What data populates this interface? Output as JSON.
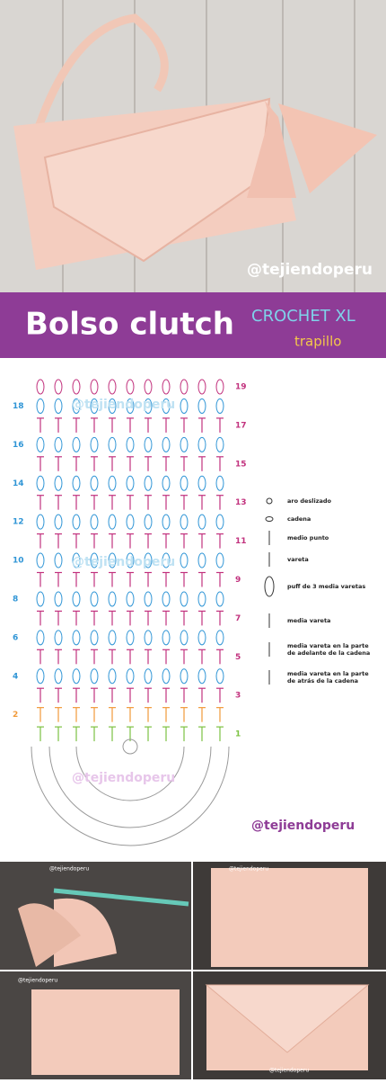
{
  "header_photo": {
    "watermark": "@tejiendoperu"
  },
  "banner": {
    "title": "Bolso clutch",
    "subtitle": "CROCHET XL",
    "tag": "trapillo"
  },
  "diagram": {
    "row_labels": [
      "19",
      "18",
      "17",
      "16",
      "15",
      "14",
      "13",
      "12",
      "11",
      "10",
      "9",
      "8",
      "7",
      "6",
      "5",
      "4",
      "3",
      "2",
      "1"
    ],
    "faint_watermarks": [
      "@tejiendoperu",
      "@tejiendoperu",
      "@tejiendoperu"
    ],
    "legend": [
      [
        "aro deslizado"
      ],
      [
        "cadena"
      ],
      [
        "medio punto"
      ],
      [
        "vareta"
      ],
      [
        "puff de 3 media varetas"
      ],
      [
        "media vareta"
      ],
      [
        "media vareta en la parte",
        "de adelante de la cadena"
      ],
      [
        "media vareta en la parte",
        "de atrás de la cadena"
      ]
    ],
    "watermark": "@tejiendoperu"
  },
  "photos": {
    "watermarks": [
      "@tejiendoperu",
      "@tejiendoperu",
      "@tejiendoperu",
      "@tejiendoperu"
    ]
  }
}
